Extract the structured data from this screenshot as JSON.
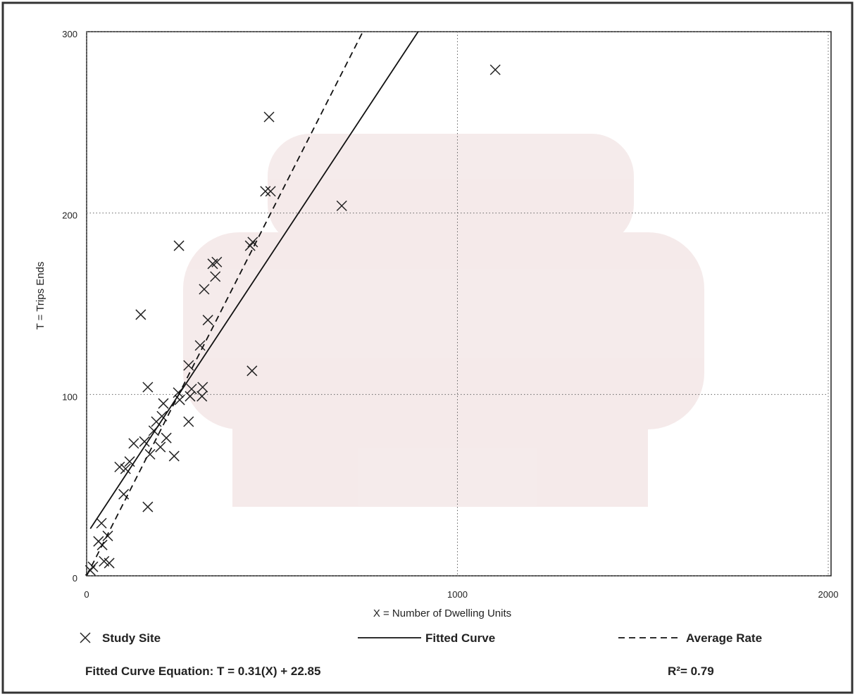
{
  "chart_data": {
    "type": "scatter",
    "x_label": "X = Number of Dwelling Units",
    "y_label": "T = Trips Ends",
    "xlim": [
      0,
      2000
    ],
    "xticks": [
      0,
      1000,
      2000
    ],
    "ylim": [
      0,
      300
    ],
    "yticks": [
      0,
      100,
      200,
      300
    ],
    "grid": true,
    "series": [
      {
        "name": "Study Site",
        "type": "scatter",
        "color": "#222222",
        "x": [
          1102,
          492,
          482,
          496,
          688,
          249,
          441,
          448,
          340,
          351,
          347,
          317,
          146,
          327,
          306,
          275,
          446,
          165,
          247,
          313,
          283,
          279,
          311,
          251,
          207,
          203,
          188,
          181,
          215,
          275,
          156,
          199,
          127,
          171,
          236,
          116,
          105,
          89,
          100,
          165,
          40,
          57,
          32,
          42,
          47,
          61,
          10,
          17
        ],
        "values": [
          279,
          253,
          212,
          212,
          204,
          182,
          182,
          184,
          172,
          173,
          165,
          158,
          144,
          141,
          127,
          116,
          113,
          104,
          101,
          104,
          103,
          99,
          99,
          97,
          95,
          88,
          85,
          80,
          76,
          85,
          74,
          71,
          73,
          67,
          66,
          63,
          59,
          60,
          45,
          38,
          29,
          22,
          19,
          17,
          8,
          7,
          3,
          5
        ]
      },
      {
        "name": "Fitted Curve",
        "type": "line",
        "dash": false,
        "color": "#111111",
        "x": [
          10,
          894
        ],
        "values": [
          26,
          300
        ]
      },
      {
        "name": "Average Rate",
        "type": "line",
        "dash": true,
        "color": "#111111",
        "x": [
          0,
          745
        ],
        "values": [
          0,
          300
        ]
      }
    ],
    "annotations": [
      "Fitted Curve Equation: T = 0.31(X) + 22.85",
      "R²= 0.79"
    ]
  }
}
